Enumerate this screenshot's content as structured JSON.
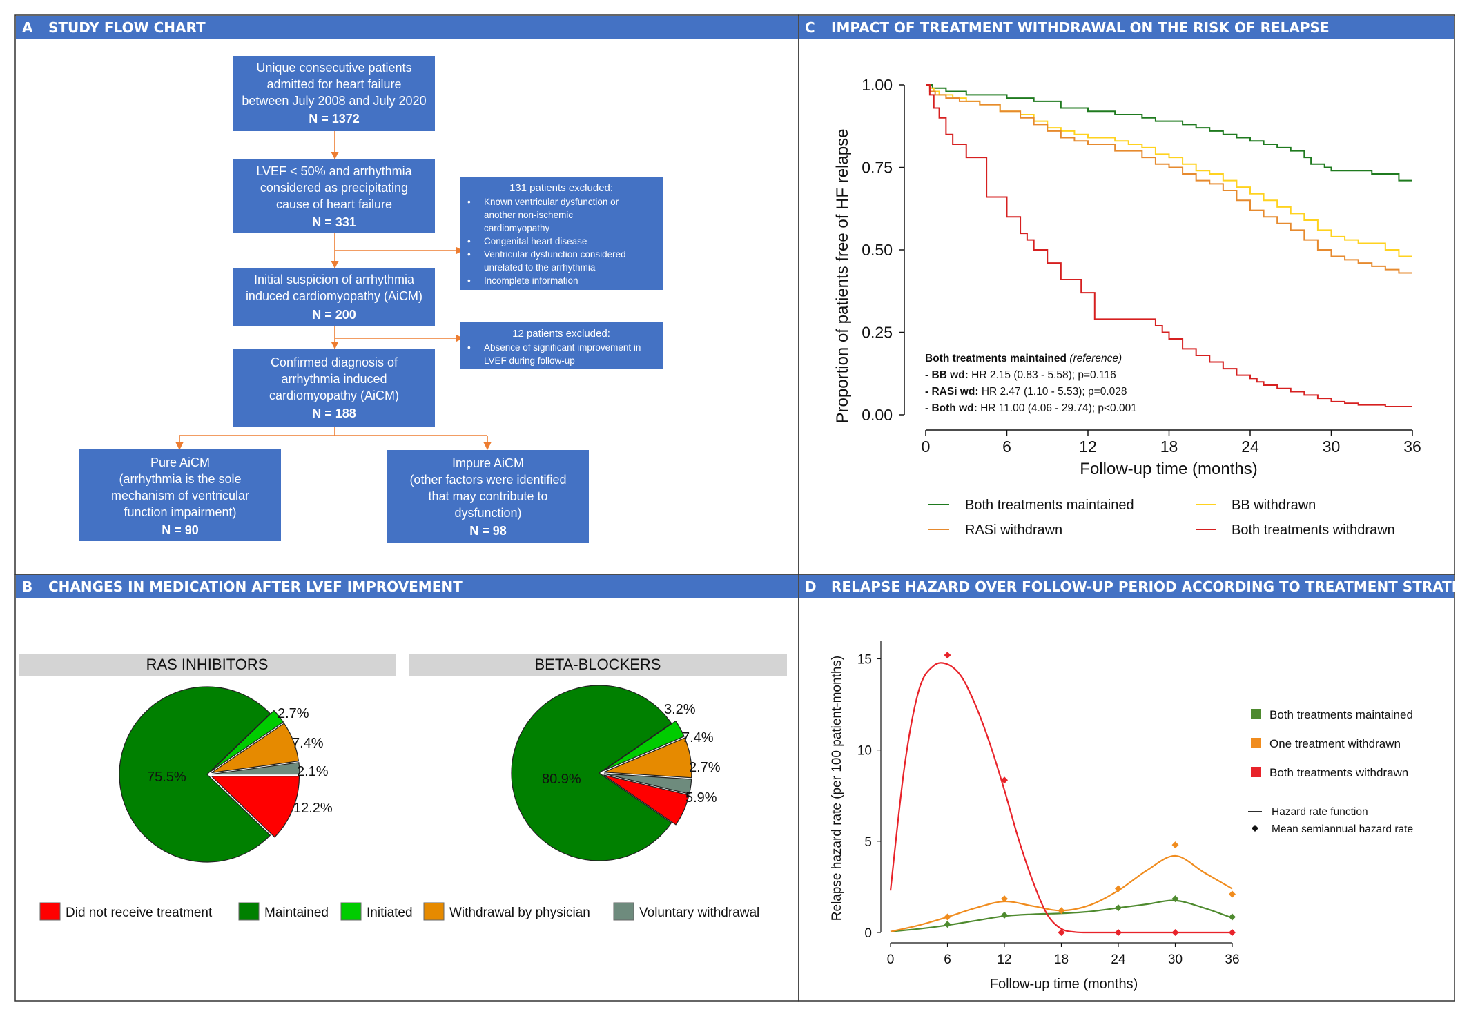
{
  "panels": {
    "a": {
      "letter": "A",
      "title": "STUDY FLOW CHART"
    },
    "b": {
      "letter": "B",
      "title": "CHANGES IN MEDICATION AFTER LVEF IMPROVEMENT"
    },
    "c": {
      "letter": "C",
      "title": "IMPACT OF TREATMENT WITHDRAWAL ON THE RISK OF RELAPSE"
    },
    "d": {
      "letter": "D",
      "title": "RELAPSE HAZARD OVER FOLLOW-UP PERIOD ACCORDING TO TREATMENT STRATEGY"
    }
  },
  "colors": {
    "header_bg": "#4472c4",
    "box_bg": "#4472c4",
    "arrow": "#ed7d31",
    "red": "#ff0000",
    "dark_green": "#008000",
    "green": "#00cc00",
    "orange": "#e68a00",
    "grey_green": "#6e8b7d",
    "km_green": "#1f7a1f",
    "km_yellow": "#ffd21f",
    "km_orange": "#e68a2e",
    "km_red": "#d62020",
    "hz_green": "#4e8a2e",
    "hz_orange": "#f08c1e",
    "hz_red": "#e8232a"
  },
  "flowchart": {
    "box1": {
      "lines": [
        "Unique consecutive patients",
        "admitted for heart failure",
        "between July 2008 and July 2020"
      ],
      "n": "N = 1372"
    },
    "box2": {
      "lines": [
        "LVEF < 50% and arrhythmia",
        "considered as precipitating",
        "cause of heart failure"
      ],
      "n": "N = 331"
    },
    "box3": {
      "lines": [
        "Initial suspicion of arrhythmia",
        "induced cardiomyopathy (AiCM)"
      ],
      "n": "N = 200"
    },
    "box4": {
      "lines": [
        "Confirmed diagnosis of",
        "arrhythmia induced",
        "cardiomyopathy (AiCM)"
      ],
      "n": "N = 188"
    },
    "box5": {
      "lines": [
        "Pure AiCM",
        "(arrhythmia is the sole",
        "mechanism of ventricular",
        "function impairment)"
      ],
      "n": "N = 90"
    },
    "box6": {
      "lines": [
        "Impure AiCM",
        "(other factors were identified",
        "that may contribute to",
        "dysfunction)"
      ],
      "n": "N = 98"
    },
    "excl1": {
      "title": "131 patients excluded:",
      "items": [
        [
          "Known ventricular dysfunction or",
          "another non-ischemic",
          "cardiomyopathy"
        ],
        [
          "Congenital heart disease"
        ],
        [
          "Ventricular dysfunction considered",
          "unrelated to the arrhythmia"
        ],
        [
          "Incomplete information"
        ]
      ]
    },
    "excl2": {
      "title": "12 patients excluded:",
      "items": [
        [
          "Absence of significant improvement in",
          "LVEF during follow-up"
        ]
      ]
    }
  },
  "pies": {
    "ras": {
      "title": "RAS INHIBITORS",
      "center_label": "75.5%",
      "slice_labels": [
        "2.7%",
        "7.4%",
        "2.1%",
        "12.2%"
      ]
    },
    "bb": {
      "title": "BETA-BLOCKERS",
      "center_label": "80.9%",
      "slice_labels": [
        "3.2%",
        "7.4%",
        "2.7%",
        "5.9%"
      ]
    },
    "legend": [
      "Did not receive treatment",
      "Maintained",
      "Initiated",
      "Withdrawal by physician",
      "Voluntary withdrawal"
    ]
  },
  "km": {
    "ylabel": "Proportion of patients free of HF relapse",
    "xlabel": "Follow-up time (months)",
    "hr_lines": [
      {
        "bold": "Both treatments maintained",
        "rest": "",
        "italic": "(reference)"
      },
      {
        "bold": "- BB wd:",
        "rest": "HR 2.15 (0.83 - 5.58); p=0.116",
        "italic": ""
      },
      {
        "bold": "- RASi wd:",
        "rest": "HR 2.47 (1.10 - 5.53); p=0.028",
        "italic": ""
      },
      {
        "bold": "- Both wd:",
        "rest": "HR 11.00 (4.06 - 29.74); p<0.001",
        "italic": ""
      }
    ],
    "legend": [
      "Both treatments maintained",
      "BB withdrawn",
      "RASi withdrawn",
      "Both treatments withdrawn"
    ]
  },
  "hazard": {
    "ylabel": "Relapse hazard rate (per 100 patient-months)",
    "xlabel": "Follow-up time (months)",
    "legend": [
      "Both treatments maintained",
      "One treatment withdrawn",
      "Both treatments withdrawn"
    ],
    "key": [
      "Hazard rate function",
      "Mean semiannual hazard rate"
    ]
  },
  "chart_data": [
    {
      "type": "pie",
      "title": "RAS INHIBITORS",
      "categories": [
        "Maintained",
        "Initiated",
        "Withdrawal by physician",
        "Voluntary withdrawal",
        "Did not receive treatment"
      ],
      "values": [
        75.5,
        2.7,
        7.4,
        2.1,
        12.2
      ]
    },
    {
      "type": "pie",
      "title": "BETA-BLOCKERS",
      "categories": [
        "Maintained",
        "Initiated",
        "Withdrawal by physician",
        "Voluntary withdrawal",
        "Did not receive treatment"
      ],
      "values": [
        80.9,
        3.2,
        7.4,
        2.7,
        5.9
      ]
    },
    {
      "type": "line",
      "title": "IMPACT OF TREATMENT WITHDRAWAL ON THE RISK OF RELAPSE",
      "xlabel": "Follow-up time (months)",
      "ylabel": "Proportion of patients free of HF relapse",
      "xlim": [
        0,
        36
      ],
      "ylim": [
        0,
        1
      ],
      "xticks": [
        "0",
        "6",
        "12",
        "18",
        "24",
        "30",
        "36"
      ],
      "yticks": [
        "0.00",
        "0.25",
        "0.50",
        "0.75",
        "1.00"
      ],
      "series": [
        {
          "name": "Both treatments maintained",
          "step": true,
          "x": [
            0,
            0.5,
            1.5,
            3,
            6,
            8,
            10,
            12,
            14,
            16,
            17,
            18,
            19,
            20,
            21,
            22,
            23,
            24,
            25,
            26,
            27,
            28,
            28.5,
            29.5,
            30,
            31,
            32,
            33,
            34,
            35,
            36
          ],
          "y": [
            1,
            0.99,
            0.98,
            0.97,
            0.96,
            0.95,
            0.93,
            0.92,
            0.91,
            0.9,
            0.89,
            0.89,
            0.88,
            0.87,
            0.86,
            0.85,
            0.84,
            0.83,
            0.82,
            0.81,
            0.8,
            0.78,
            0.76,
            0.75,
            0.74,
            0.74,
            0.74,
            0.73,
            0.73,
            0.71,
            0.71
          ]
        },
        {
          "name": "BB withdrawn",
          "step": true,
          "x": [
            0,
            0.3,
            0.6,
            1,
            2,
            3,
            4,
            5.5,
            7,
            8,
            9,
            10,
            11,
            12,
            14,
            15,
            16,
            17,
            18,
            19,
            20,
            21,
            22,
            23,
            24,
            25,
            26,
            27,
            28,
            29,
            30,
            31,
            32,
            33,
            34,
            35,
            36
          ],
          "y": [
            1,
            0.99,
            0.98,
            0.97,
            0.96,
            0.95,
            0.94,
            0.92,
            0.91,
            0.89,
            0.87,
            0.86,
            0.85,
            0.84,
            0.83,
            0.82,
            0.81,
            0.79,
            0.78,
            0.76,
            0.74,
            0.73,
            0.71,
            0.69,
            0.67,
            0.65,
            0.63,
            0.61,
            0.59,
            0.56,
            0.54,
            0.53,
            0.52,
            0.52,
            0.5,
            0.48,
            0.48
          ]
        },
        {
          "name": "RASi withdrawn",
          "step": true,
          "x": [
            0,
            0.3,
            0.7,
            1.5,
            2.5,
            4,
            5.5,
            7,
            8,
            9,
            10,
            11,
            12,
            14,
            16,
            17,
            18,
            19,
            20,
            21,
            22,
            23,
            24,
            25,
            26,
            27,
            28,
            29,
            30,
            31,
            32,
            33,
            34,
            35,
            36
          ],
          "y": [
            1,
            0.98,
            0.97,
            0.96,
            0.95,
            0.94,
            0.92,
            0.9,
            0.88,
            0.86,
            0.84,
            0.83,
            0.82,
            0.8,
            0.78,
            0.76,
            0.75,
            0.73,
            0.71,
            0.7,
            0.68,
            0.65,
            0.62,
            0.6,
            0.58,
            0.56,
            0.53,
            0.5,
            0.48,
            0.47,
            0.46,
            0.45,
            0.44,
            0.43,
            0.43
          ]
        },
        {
          "name": "Both treatments withdrawn",
          "step": true,
          "x": [
            0,
            0.3,
            0.6,
            1,
            1.5,
            2,
            3,
            4.5,
            6,
            7,
            7.5,
            8,
            9,
            10,
            11.5,
            12.5,
            17,
            17.5,
            18,
            19,
            20,
            21,
            22,
            23,
            24,
            24.5,
            25,
            26,
            27,
            28,
            29,
            30,
            31,
            32,
            33,
            34,
            36
          ],
          "y": [
            1,
            0.97,
            0.93,
            0.9,
            0.85,
            0.82,
            0.78,
            0.66,
            0.6,
            0.55,
            0.53,
            0.5,
            0.46,
            0.41,
            0.37,
            0.29,
            0.27,
            0.25,
            0.23,
            0.2,
            0.18,
            0.16,
            0.14,
            0.12,
            0.11,
            0.1,
            0.09,
            0.08,
            0.07,
            0.06,
            0.05,
            0.04,
            0.035,
            0.03,
            0.03,
            0.025,
            0.025
          ]
        }
      ]
    },
    {
      "type": "line",
      "title": "RELAPSE HAZARD OVER FOLLOW-UP PERIOD ACCORDING TO TREATMENT STRATEGY",
      "xlabel": "Follow-up time (months)",
      "ylabel": "Relapse hazard rate (per 100 patient-months)",
      "xlim": [
        0,
        36
      ],
      "ylim": [
        0,
        16
      ],
      "xticks": [
        "0",
        "6",
        "12",
        "18",
        "24",
        "30",
        "36"
      ],
      "yticks": [
        "0",
        "5",
        "10",
        "15"
      ],
      "series": [
        {
          "name": "Both treatments maintained",
          "curve_x": [
            0,
            3,
            6,
            9,
            12,
            15,
            18,
            21,
            24,
            27,
            30,
            33,
            36
          ],
          "curve_y": [
            0.05,
            0.2,
            0.4,
            0.65,
            0.9,
            1.0,
            1.05,
            1.15,
            1.35,
            1.55,
            1.75,
            1.35,
            0.8
          ],
          "points_x": [
            6,
            12,
            24,
            30,
            36
          ],
          "points_y": [
            0.45,
            0.95,
            1.35,
            1.85,
            0.85
          ]
        },
        {
          "name": "One treatment withdrawn",
          "curve_x": [
            0,
            3,
            6,
            9,
            12,
            15,
            18,
            21,
            24,
            27,
            30,
            33,
            36
          ],
          "curve_y": [
            0.05,
            0.4,
            0.85,
            1.35,
            1.7,
            1.45,
            1.2,
            1.5,
            2.3,
            3.4,
            4.2,
            3.3,
            2.4
          ],
          "points_x": [
            6,
            12,
            18,
            24,
            30,
            36
          ],
          "points_y": [
            0.85,
            1.85,
            1.2,
            2.4,
            4.8,
            2.1
          ]
        },
        {
          "name": "Both treatments withdrawn",
          "curve_x": [
            0,
            1.5,
            3,
            4.5,
            6,
            7.5,
            9,
            10.5,
            12,
            13.5,
            15,
            16.5,
            18,
            19.5,
            21,
            24,
            30,
            36
          ],
          "curve_y": [
            2.3,
            9.2,
            13.3,
            14.6,
            14.7,
            14.0,
            12.4,
            10.3,
            7.8,
            5.1,
            2.8,
            1.0,
            0.2,
            0.02,
            0,
            0,
            0,
            0
          ],
          "points_x": [
            6,
            12,
            18,
            24,
            30,
            36
          ],
          "points_y": [
            15.2,
            8.35,
            0,
            0,
            0,
            0
          ]
        }
      ]
    }
  ]
}
